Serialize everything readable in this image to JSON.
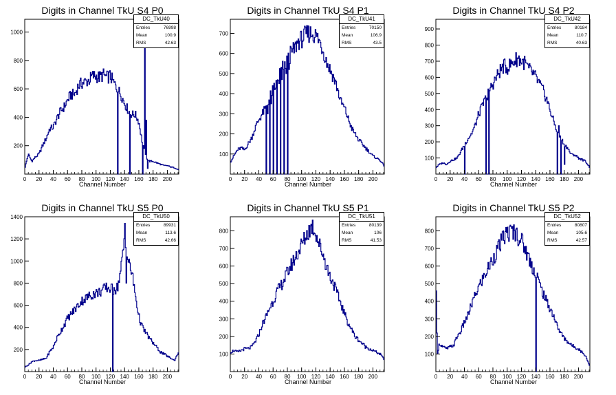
{
  "chart_data": [
    {
      "type": "bar",
      "title": "Digits in Channel TkU S4 P0",
      "xlabel": "Channel Number",
      "ylabel": "",
      "xlim": [
        0,
        216
      ],
      "ylim": [
        0,
        1090
      ],
      "xticks": [
        0,
        20,
        40,
        60,
        80,
        100,
        120,
        140,
        160,
        180,
        200
      ],
      "yticks": [
        200,
        400,
        600,
        800,
        1000
      ],
      "stats": {
        "name": "DC_TkU40",
        "entries": "76998",
        "mean": "100.9",
        "rms": "42.63"
      },
      "stat_labels": {
        "entries": "Entries",
        "mean": "Mean",
        "rms": "RMS"
      },
      "envelope": [
        [
          0,
          40
        ],
        [
          5,
          140
        ],
        [
          10,
          90
        ],
        [
          15,
          120
        ],
        [
          20,
          140
        ],
        [
          25,
          200
        ],
        [
          30,
          250
        ],
        [
          35,
          320
        ],
        [
          40,
          330
        ],
        [
          45,
          390
        ],
        [
          50,
          440
        ],
        [
          55,
          470
        ],
        [
          60,
          520
        ],
        [
          65,
          560
        ],
        [
          70,
          560
        ],
        [
          75,
          620
        ],
        [
          80,
          640
        ],
        [
          85,
          650
        ],
        [
          90,
          660
        ],
        [
          95,
          690
        ],
        [
          100,
          690
        ],
        [
          105,
          680
        ],
        [
          110,
          700
        ],
        [
          115,
          680
        ],
        [
          120,
          690
        ],
        [
          125,
          640
        ],
        [
          130,
          600
        ],
        [
          135,
          560
        ],
        [
          140,
          500
        ],
        [
          145,
          450
        ],
        [
          150,
          420
        ],
        [
          155,
          420
        ],
        [
          160,
          370
        ],
        [
          165,
          220
        ],
        [
          170,
          120
        ],
        [
          175,
          90
        ],
        [
          180,
          90
        ],
        [
          185,
          80
        ],
        [
          190,
          70
        ],
        [
          195,
          60
        ],
        [
          200,
          60
        ],
        [
          205,
          50
        ],
        [
          210,
          45
        ],
        [
          216,
          30
        ]
      ],
      "spikes": [
        [
          130,
          0
        ],
        [
          147,
          0
        ],
        [
          165,
          0
        ],
        [
          168,
          1000
        ],
        [
          170,
          380
        ],
        [
          172,
          40
        ]
      ],
      "line_color": "#00008b"
    },
    {
      "type": "bar",
      "title": "Digits in Channel TkU S4 P1",
      "xlabel": "Channel Number",
      "ylabel": "",
      "xlim": [
        0,
        216
      ],
      "ylim": [
        0,
        770
      ],
      "xticks": [
        0,
        20,
        40,
        60,
        80,
        100,
        120,
        140,
        160,
        180,
        200
      ],
      "yticks": [
        100,
        200,
        300,
        400,
        500,
        600,
        700
      ],
      "stats": {
        "name": "DC_TkU41",
        "entries": "70150",
        "mean": "106.9",
        "rms": "43.5"
      },
      "stat_labels": {
        "entries": "Entries",
        "mean": "Mean",
        "rms": "RMS"
      },
      "envelope": [
        [
          0,
          60
        ],
        [
          5,
          90
        ],
        [
          10,
          120
        ],
        [
          15,
          130
        ],
        [
          20,
          120
        ],
        [
          25,
          150
        ],
        [
          30,
          180
        ],
        [
          35,
          230
        ],
        [
          40,
          270
        ],
        [
          45,
          300
        ],
        [
          50,
          330
        ],
        [
          55,
          380
        ],
        [
          60,
          420
        ],
        [
          65,
          450
        ],
        [
          70,
          510
        ],
        [
          75,
          540
        ],
        [
          80,
          560
        ],
        [
          85,
          600
        ],
        [
          90,
          620
        ],
        [
          95,
          660
        ],
        [
          100,
          670
        ],
        [
          105,
          690
        ],
        [
          110,
          700
        ],
        [
          115,
          700
        ],
        [
          120,
          690
        ],
        [
          125,
          660
        ],
        [
          130,
          620
        ],
        [
          135,
          560
        ],
        [
          140,
          520
        ],
        [
          145,
          480
        ],
        [
          150,
          430
        ],
        [
          155,
          360
        ],
        [
          160,
          330
        ],
        [
          165,
          280
        ],
        [
          170,
          230
        ],
        [
          175,
          200
        ],
        [
          180,
          170
        ],
        [
          185,
          150
        ],
        [
          190,
          130
        ],
        [
          195,
          110
        ],
        [
          200,
          90
        ],
        [
          205,
          80
        ],
        [
          210,
          70
        ],
        [
          216,
          40
        ]
      ],
      "spikes": [
        [
          50,
          0
        ],
        [
          52,
          300
        ],
        [
          55,
          0
        ],
        [
          57,
          350
        ],
        [
          60,
          0
        ],
        [
          62,
          420
        ],
        [
          65,
          0
        ],
        [
          68,
          450
        ],
        [
          70,
          0
        ],
        [
          72,
          470
        ],
        [
          75,
          0
        ],
        [
          78,
          500
        ],
        [
          80,
          0
        ],
        [
          82,
          520
        ]
      ],
      "line_color": "#00008b"
    },
    {
      "type": "bar",
      "title": "Digits in Channel TkU S4 P2",
      "xlabel": "Channel Number",
      "ylabel": "",
      "xlim": [
        0,
        216
      ],
      "ylim": [
        0,
        960
      ],
      "xticks": [
        0,
        20,
        40,
        60,
        80,
        100,
        120,
        140,
        160,
        180,
        200
      ],
      "yticks": [
        100,
        200,
        300,
        400,
        500,
        600,
        700,
        800,
        900
      ],
      "stats": {
        "name": "DC_TkU42",
        "entries": "80184",
        "mean": "110.7",
        "rms": "40.63"
      },
      "stat_labels": {
        "entries": "Entries",
        "mean": "Mean",
        "rms": "RMS"
      },
      "envelope": [
        [
          0,
          40
        ],
        [
          5,
          60
        ],
        [
          10,
          70
        ],
        [
          15,
          60
        ],
        [
          20,
          80
        ],
        [
          25,
          90
        ],
        [
          30,
          100
        ],
        [
          35,
          140
        ],
        [
          40,
          180
        ],
        [
          45,
          220
        ],
        [
          50,
          250
        ],
        [
          55,
          300
        ],
        [
          60,
          370
        ],
        [
          65,
          420
        ],
        [
          70,
          470
        ],
        [
          75,
          520
        ],
        [
          80,
          560
        ],
        [
          85,
          600
        ],
        [
          90,
          640
        ],
        [
          95,
          670
        ],
        [
          100,
          660
        ],
        [
          105,
          680
        ],
        [
          110,
          700
        ],
        [
          115,
          720
        ],
        [
          120,
          700
        ],
        [
          125,
          690
        ],
        [
          130,
          650
        ],
        [
          135,
          630
        ],
        [
          140,
          600
        ],
        [
          145,
          560
        ],
        [
          150,
          520
        ],
        [
          155,
          470
        ],
        [
          160,
          400
        ],
        [
          165,
          330
        ],
        [
          170,
          270
        ],
        [
          175,
          220
        ],
        [
          180,
          190
        ],
        [
          185,
          160
        ],
        [
          190,
          120
        ],
        [
          195,
          120
        ],
        [
          200,
          100
        ],
        [
          205,
          90
        ],
        [
          210,
          80
        ],
        [
          216,
          40
        ]
      ],
      "spikes": [
        [
          40,
          0
        ],
        [
          70,
          0
        ],
        [
          72,
          460
        ],
        [
          74,
          0
        ],
        [
          170,
          0
        ],
        [
          172,
          300
        ],
        [
          175,
          0
        ],
        [
          180,
          60
        ]
      ],
      "line_color": "#00008b"
    },
    {
      "type": "bar",
      "title": "Digits in Channel TkU S5 P0",
      "xlabel": "Channel Number",
      "ylabel": "",
      "xlim": [
        0,
        216
      ],
      "ylim": [
        0,
        1400
      ],
      "xticks": [
        0,
        20,
        40,
        60,
        80,
        100,
        120,
        140,
        160,
        180,
        200
      ],
      "yticks": [
        200,
        400,
        600,
        800,
        1000,
        1200,
        1400
      ],
      "stats": {
        "name": "DC_TkU50",
        "entries": "89931",
        "mean": "113.6",
        "rms": "42.66"
      },
      "stat_labels": {
        "entries": "Entries",
        "mean": "Mean",
        "rms": "RMS"
      },
      "envelope": [
        [
          0,
          40
        ],
        [
          5,
          60
        ],
        [
          10,
          90
        ],
        [
          15,
          100
        ],
        [
          20,
          100
        ],
        [
          25,
          110
        ],
        [
          30,
          120
        ],
        [
          35,
          180
        ],
        [
          40,
          220
        ],
        [
          45,
          300
        ],
        [
          50,
          360
        ],
        [
          55,
          420
        ],
        [
          60,
          480
        ],
        [
          65,
          520
        ],
        [
          70,
          560
        ],
        [
          75,
          600
        ],
        [
          80,
          640
        ],
        [
          85,
          660
        ],
        [
          90,
          680
        ],
        [
          95,
          700
        ],
        [
          100,
          710
        ],
        [
          105,
          720
        ],
        [
          110,
          740
        ],
        [
          115,
          760
        ],
        [
          120,
          750
        ],
        [
          125,
          740
        ],
        [
          130,
          760
        ],
        [
          135,
          920
        ],
        [
          140,
          1200
        ],
        [
          145,
          1000
        ],
        [
          150,
          900
        ],
        [
          155,
          700
        ],
        [
          160,
          500
        ],
        [
          165,
          400
        ],
        [
          170,
          350
        ],
        [
          175,
          300
        ],
        [
          180,
          260
        ],
        [
          185,
          220
        ],
        [
          190,
          180
        ],
        [
          195,
          160
        ],
        [
          200,
          140
        ],
        [
          205,
          120
        ],
        [
          210,
          100
        ],
        [
          216,
          180
        ]
      ],
      "spikes": [
        [
          123,
          0
        ],
        [
          125,
          760
        ],
        [
          140,
          1340
        ],
        [
          142,
          800
        ]
      ],
      "line_color": "#00008b"
    },
    {
      "type": "bar",
      "title": "Digits in Channel TkU S5 P1",
      "xlabel": "Channel Number",
      "ylabel": "",
      "xlim": [
        0,
        216
      ],
      "ylim": [
        0,
        880
      ],
      "xticks": [
        0,
        20,
        40,
        60,
        80,
        100,
        120,
        140,
        160,
        180,
        200
      ],
      "yticks": [
        100,
        200,
        300,
        400,
        500,
        600,
        700,
        800
      ],
      "stats": {
        "name": "DC_TkU51",
        "entries": "80139",
        "mean": "106",
        "rms": "41.53"
      },
      "stat_labels": {
        "entries": "Entries",
        "mean": "Mean",
        "rms": "RMS"
      },
      "envelope": [
        [
          0,
          110
        ],
        [
          5,
          120
        ],
        [
          10,
          110
        ],
        [
          15,
          120
        ],
        [
          20,
          130
        ],
        [
          25,
          130
        ],
        [
          30,
          140
        ],
        [
          35,
          170
        ],
        [
          40,
          210
        ],
        [
          45,
          270
        ],
        [
          50,
          310
        ],
        [
          55,
          360
        ],
        [
          60,
          400
        ],
        [
          65,
          450
        ],
        [
          70,
          480
        ],
        [
          75,
          520
        ],
        [
          80,
          560
        ],
        [
          85,
          600
        ],
        [
          90,
          640
        ],
        [
          95,
          680
        ],
        [
          100,
          720
        ],
        [
          105,
          760
        ],
        [
          110,
          800
        ],
        [
          115,
          830
        ],
        [
          120,
          790
        ],
        [
          125,
          720
        ],
        [
          130,
          670
        ],
        [
          135,
          600
        ],
        [
          140,
          540
        ],
        [
          145,
          500
        ],
        [
          150,
          440
        ],
        [
          155,
          390
        ],
        [
          160,
          330
        ],
        [
          165,
          280
        ],
        [
          170,
          240
        ],
        [
          175,
          200
        ],
        [
          180,
          180
        ],
        [
          185,
          160
        ],
        [
          190,
          140
        ],
        [
          195,
          130
        ],
        [
          200,
          120
        ],
        [
          205,
          110
        ],
        [
          210,
          100
        ],
        [
          216,
          70
        ]
      ],
      "spikes": [],
      "line_color": "#00008b"
    },
    {
      "type": "bar",
      "title": "Digits in Channel TkU S5 P2",
      "xlabel": "Channel Number",
      "ylabel": "",
      "xlim": [
        0,
        216
      ],
      "ylim": [
        0,
        880
      ],
      "xticks": [
        0,
        20,
        40,
        60,
        80,
        100,
        120,
        140,
        160,
        180,
        200
      ],
      "yticks": [
        100,
        200,
        300,
        400,
        500,
        600,
        700,
        800
      ],
      "stats": {
        "name": "DC_TkU52",
        "entries": "80807",
        "mean": "105.6",
        "rms": "42.57"
      },
      "stat_labels": {
        "entries": "Entries",
        "mean": "Mean",
        "rms": "RMS"
      },
      "envelope": [
        [
          0,
          540
        ],
        [
          2,
          100
        ],
        [
          5,
          160
        ],
        [
          10,
          140
        ],
        [
          15,
          130
        ],
        [
          20,
          140
        ],
        [
          25,
          150
        ],
        [
          30,
          200
        ],
        [
          35,
          230
        ],
        [
          40,
          280
        ],
        [
          45,
          320
        ],
        [
          50,
          380
        ],
        [
          55,
          430
        ],
        [
          60,
          480
        ],
        [
          65,
          520
        ],
        [
          70,
          560
        ],
        [
          75,
          600
        ],
        [
          80,
          640
        ],
        [
          85,
          680
        ],
        [
          90,
          720
        ],
        [
          95,
          760
        ],
        [
          100,
          790
        ],
        [
          105,
          790
        ],
        [
          110,
          800
        ],
        [
          115,
          770
        ],
        [
          120,
          750
        ],
        [
          125,
          700
        ],
        [
          130,
          650
        ],
        [
          135,
          600
        ],
        [
          140,
          560
        ],
        [
          145,
          500
        ],
        [
          150,
          450
        ],
        [
          155,
          400
        ],
        [
          160,
          360
        ],
        [
          165,
          320
        ],
        [
          170,
          260
        ],
        [
          175,
          220
        ],
        [
          180,
          190
        ],
        [
          185,
          170
        ],
        [
          190,
          150
        ],
        [
          195,
          140
        ],
        [
          200,
          130
        ],
        [
          205,
          110
        ],
        [
          210,
          90
        ],
        [
          216,
          30
        ]
      ],
      "spikes": [
        [
          140,
          0
        ],
        [
          142,
          560
        ]
      ],
      "line_color": "#00008b"
    }
  ]
}
